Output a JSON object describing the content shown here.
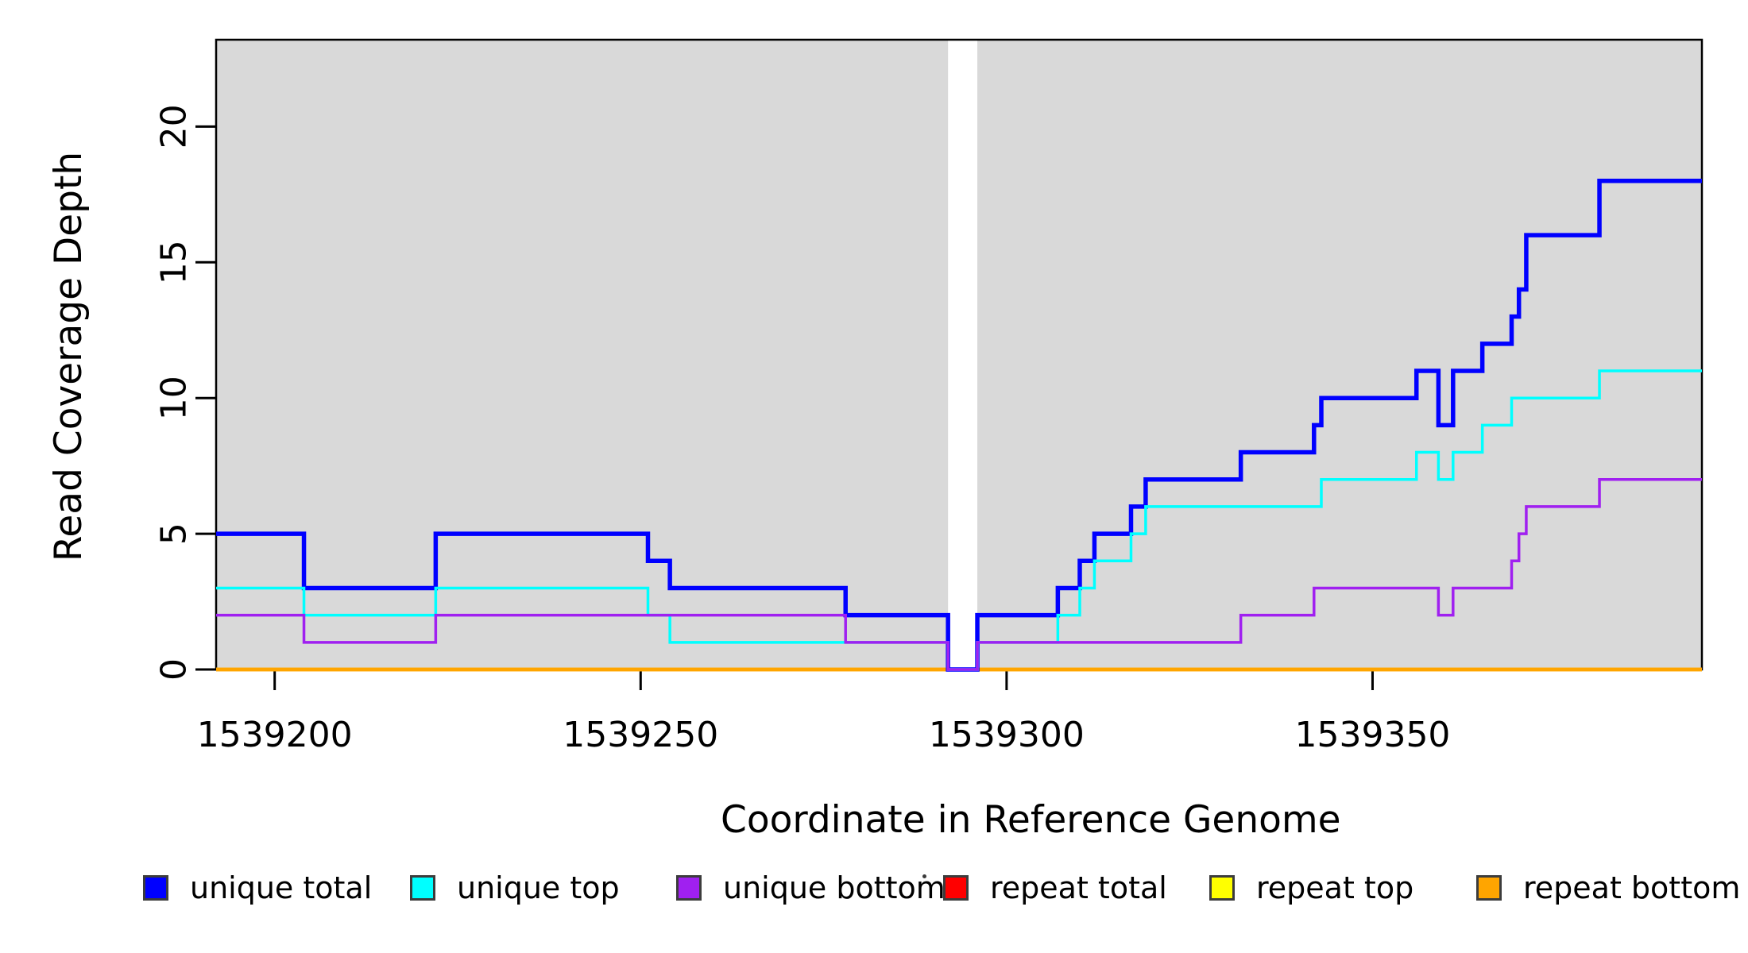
{
  "figure": {
    "background": "#FFFFFF",
    "panel_background": "#D9D9D9",
    "gap_fill": "#FFFFFF",
    "axis_color": "#000000"
  },
  "chart_data": {
    "type": "line",
    "subtype": "step",
    "title": "",
    "xlabel": "Coordinate in Reference Genome",
    "ylabel": "Read Coverage Depth",
    "xlim": [
      1539192,
      1539395
    ],
    "ylim": [
      0,
      23.2
    ],
    "xticks": [
      1539200,
      1539250,
      1539300,
      1539350
    ],
    "yticks": [
      0,
      5,
      10,
      15,
      20
    ],
    "grid": false,
    "legend_position": "bottom",
    "no_data_region": {
      "x_start": 1539292,
      "x_end": 1539296
    },
    "x_end": 1539395,
    "series": [
      {
        "name": "unique total",
        "color": "#0000FF",
        "width": 5.5,
        "steps": [
          [
            1539192,
            5
          ],
          [
            1539204,
            3
          ],
          [
            1539222,
            5
          ],
          [
            1539251,
            4
          ],
          [
            1539254,
            3
          ],
          [
            1539278,
            2
          ],
          [
            1539292,
            0
          ],
          [
            1539296,
            2
          ],
          [
            1539307,
            3
          ],
          [
            1539310,
            4
          ],
          [
            1539312,
            5
          ],
          [
            1539317,
            6
          ],
          [
            1539319,
            7
          ],
          [
            1539332,
            8
          ],
          [
            1539342,
            9
          ],
          [
            1539343,
            10
          ],
          [
            1539356,
            11
          ],
          [
            1539359,
            9
          ],
          [
            1539361,
            11
          ],
          [
            1539365,
            12
          ],
          [
            1539369,
            13
          ],
          [
            1539370,
            14
          ],
          [
            1539371,
            16
          ],
          [
            1539381,
            18
          ]
        ]
      },
      {
        "name": "unique top",
        "color": "#00FFFF",
        "width": 3.5,
        "steps": [
          [
            1539192,
            3
          ],
          [
            1539204,
            2
          ],
          [
            1539222,
            3
          ],
          [
            1539251,
            2
          ],
          [
            1539254,
            1
          ],
          [
            1539292,
            0
          ],
          [
            1539296,
            1
          ],
          [
            1539307,
            2
          ],
          [
            1539310,
            3
          ],
          [
            1539312,
            4
          ],
          [
            1539317,
            5
          ],
          [
            1539319,
            6
          ],
          [
            1539343,
            7
          ],
          [
            1539356,
            8
          ],
          [
            1539359,
            7
          ],
          [
            1539361,
            8
          ],
          [
            1539365,
            9
          ],
          [
            1539369,
            10
          ],
          [
            1539381,
            11
          ]
        ]
      },
      {
        "name": "unique bottom",
        "color": "#A020F0",
        "width": 3.5,
        "steps": [
          [
            1539192,
            2
          ],
          [
            1539204,
            1
          ],
          [
            1539222,
            2
          ],
          [
            1539278,
            1
          ],
          [
            1539292,
            0
          ],
          [
            1539296,
            1
          ],
          [
            1539332,
            2
          ],
          [
            1539342,
            3
          ],
          [
            1539359,
            2
          ],
          [
            1539361,
            3
          ],
          [
            1539369,
            4
          ],
          [
            1539370,
            5
          ],
          [
            1539371,
            6
          ],
          [
            1539381,
            7
          ]
        ]
      },
      {
        "name": "repeat total",
        "color": "#FF0000",
        "width": 4.5,
        "steps": [
          [
            1539192,
            0
          ]
        ]
      },
      {
        "name": "repeat top",
        "color": "#FFFF00",
        "width": 4.5,
        "steps": [
          [
            1539192,
            0
          ]
        ]
      },
      {
        "name": "repeat bottom",
        "color": "#FFA500",
        "width": 4.5,
        "steps": [
          [
            1539192,
            0
          ]
        ]
      }
    ]
  }
}
